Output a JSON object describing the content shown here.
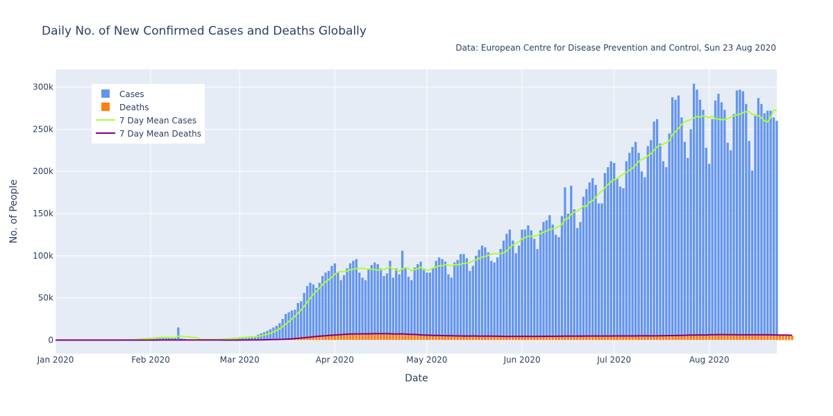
{
  "chart_data": {
    "type": "bar",
    "title": "Daily No. of New Confirmed Cases and Deaths Globally",
    "subtitle": "Data: European Centre for Disease Prevention and Control, Sun 23 Aug 2020",
    "xlabel": "Date",
    "ylabel": "No. of People",
    "xlim": [
      "2020-01-01",
      "2020-08-23"
    ],
    "ylim": [
      -16000,
      321000
    ],
    "y_ticks": [
      0,
      50000,
      100000,
      150000,
      200000,
      250000,
      300000
    ],
    "y_tick_labels": [
      "0",
      "50k",
      "100k",
      "150k",
      "200k",
      "250k",
      "300k"
    ],
    "x_ticks": [
      "2020-01-01",
      "2020-02-01",
      "2020-03-01",
      "2020-04-01",
      "2020-05-01",
      "2020-06-01",
      "2020-07-01",
      "2020-08-01"
    ],
    "x_tick_labels": [
      "Jan 2020",
      "Feb 2020",
      "Mar 2020",
      "Apr 2020",
      "May 2020",
      "Jun 2020",
      "Jul 2020",
      "Aug 2020"
    ],
    "grid": true,
    "legend_position": "top-left",
    "start_date": "2020-01-01",
    "series": [
      {
        "name": "Cases",
        "kind": "bar",
        "color": "#6495ed",
        "values": [
          0,
          0,
          0,
          0,
          0,
          0,
          0,
          0,
          0,
          0,
          0,
          0,
          0,
          0,
          0,
          0,
          0,
          0,
          50,
          100,
          150,
          200,
          300,
          400,
          700,
          800,
          1300,
          1700,
          2000,
          2100,
          2600,
          2800,
          3000,
          3500,
          3800,
          3500,
          3000,
          2800,
          2500,
          2300,
          15000,
          2000,
          1500,
          900,
          600,
          400,
          500,
          400,
          800,
          600,
          500,
          500,
          900,
          800,
          1400,
          1900,
          2200,
          2400,
          2800,
          3000,
          3500,
          3700,
          3900,
          4200,
          4500,
          4800,
          6500,
          8000,
          9500,
          11000,
          13000,
          15000,
          17000,
          20000,
          25000,
          31000,
          33000,
          35000,
          36000,
          44000,
          46000,
          56000,
          64000,
          68000,
          66000,
          62000,
          68000,
          76000,
          80000,
          82000,
          88000,
          91000,
          80000,
          71000,
          77000,
          85000,
          91000,
          94000,
          96000,
          80000,
          74000,
          71000,
          84000,
          89000,
          92000,
          90000,
          85000,
          76000,
          79000,
          94000,
          74000,
          85000,
          78000,
          106000,
          85000,
          75000,
          71000,
          86000,
          90000,
          93000,
          85000,
          80000,
          80000,
          85000,
          94000,
          98000,
          96000,
          93000,
          78000,
          74000,
          92000,
          95000,
          102000,
          102000,
          97000,
          82000,
          88000,
          100000,
          107000,
          112000,
          110000,
          104000,
          94000,
          92000,
          98000,
          108000,
          118000,
          126000,
          131000,
          118000,
          103000,
          112000,
          131000,
          131000,
          136000,
          130000,
          120000,
          108000,
          130000,
          140000,
          142000,
          148000,
          137000,
          125000,
          122000,
          147000,
          181000,
          150000,
          183000,
          155000,
          133000,
          140000,
          170000,
          179000,
          187000,
          192000,
          184000,
          162000,
          162000,
          198000,
          205000,
          212000,
          210000,
          192000,
          182000,
          180000,
          212000,
          222000,
          229000,
          235000,
          222000,
          200000,
          193000,
          230000,
          237000,
          259000,
          262000,
          233000,
          212000,
          205000,
          245000,
          288000,
          285000,
          290000,
          264000,
          235000,
          216000,
          250000,
          304000,
          297000,
          285000,
          273000,
          228000,
          209000,
          262000,
          284000,
          292000,
          282000,
          273000,
          234000,
          225000,
          268000,
          296000,
          297000,
          295000,
          280000,
          236000,
          201000,
          266000,
          287000,
          280000,
          269000,
          272000,
          272000,
          264000,
          260000
        ]
      },
      {
        "name": "Deaths",
        "kind": "bar",
        "color": "#ff7f0e",
        "values": [
          0,
          0,
          0,
          0,
          0,
          0,
          0,
          0,
          0,
          0,
          0,
          0,
          0,
          0,
          0,
          0,
          0,
          0,
          0,
          0,
          10,
          15,
          15,
          20,
          25,
          30,
          40,
          45,
          50,
          60,
          65,
          70,
          75,
          80,
          90,
          95,
          100,
          105,
          110,
          115,
          250,
          140,
          150,
          140,
          130,
          120,
          110,
          100,
          90,
          80,
          80,
          70,
          70,
          65,
          60,
          55,
          50,
          45,
          60,
          80,
          100,
          150,
          200,
          250,
          300,
          350,
          400,
          500,
          600,
          700,
          800,
          900,
          1000,
          1200,
          1400,
          1700,
          2000,
          2400,
          2800,
          3300,
          3700,
          4000,
          4300,
          4700,
          5000,
          5300,
          5500,
          5800,
          6000,
          6200,
          6500,
          6700,
          7000,
          7300,
          7600,
          7800,
          7500,
          7000,
          7000,
          7300,
          7500,
          7800,
          8000,
          8200,
          7600,
          7200,
          7000,
          7800,
          7500,
          7200,
          7000,
          7300,
          8000,
          6800,
          6400,
          6000,
          6000,
          6200,
          6000,
          5800,
          5600,
          5400,
          5200,
          5200,
          5500,
          5600,
          5300,
          5000,
          4800,
          4600,
          4700,
          5000,
          5200,
          5100,
          4900,
          4700,
          4600,
          4500,
          4600,
          4800,
          4900,
          4800,
          4600,
          4400,
          4300,
          4200,
          4300,
          4500,
          4600,
          4700,
          4600,
          4400,
          4300,
          4200,
          4300,
          4500,
          4600,
          4800,
          4700,
          4500,
          4400,
          4300,
          4500,
          4800,
          5000,
          5100,
          5000,
          4800,
          4600,
          4500,
          4700,
          5000,
          5100,
          5200,
          5000,
          4800,
          4600,
          4500,
          4800,
          5000,
          5200,
          5300,
          5100,
          4900,
          4700,
          4600,
          4900,
          5100,
          5300,
          5400,
          5200,
          5000,
          4800,
          4700,
          5000,
          5300,
          5500,
          5700,
          5600,
          5400,
          5200,
          5100,
          5500,
          6000,
          6300,
          6500,
          6300,
          6000,
          5800,
          5600,
          6000,
          6500,
          6800,
          7000,
          6700,
          6400,
          6200,
          6000,
          6300,
          6500,
          6600,
          6400,
          6200,
          6000,
          5900,
          6200,
          6500,
          6600,
          6400,
          6200,
          6000,
          5900,
          6100,
          6300,
          6200,
          6000,
          5800,
          5600,
          5500,
          5400,
          5300
        ]
      },
      {
        "name": "7 Day Mean Cases",
        "kind": "line",
        "color": "#adff2f",
        "values": []
      },
      {
        "name": "7 Day Mean Deaths",
        "kind": "line",
        "color": "#800080",
        "values": []
      }
    ],
    "colors": {
      "plot_bg": "#e5ecf6",
      "grid": "#ffffff",
      "text": "#2a3f5f"
    }
  }
}
